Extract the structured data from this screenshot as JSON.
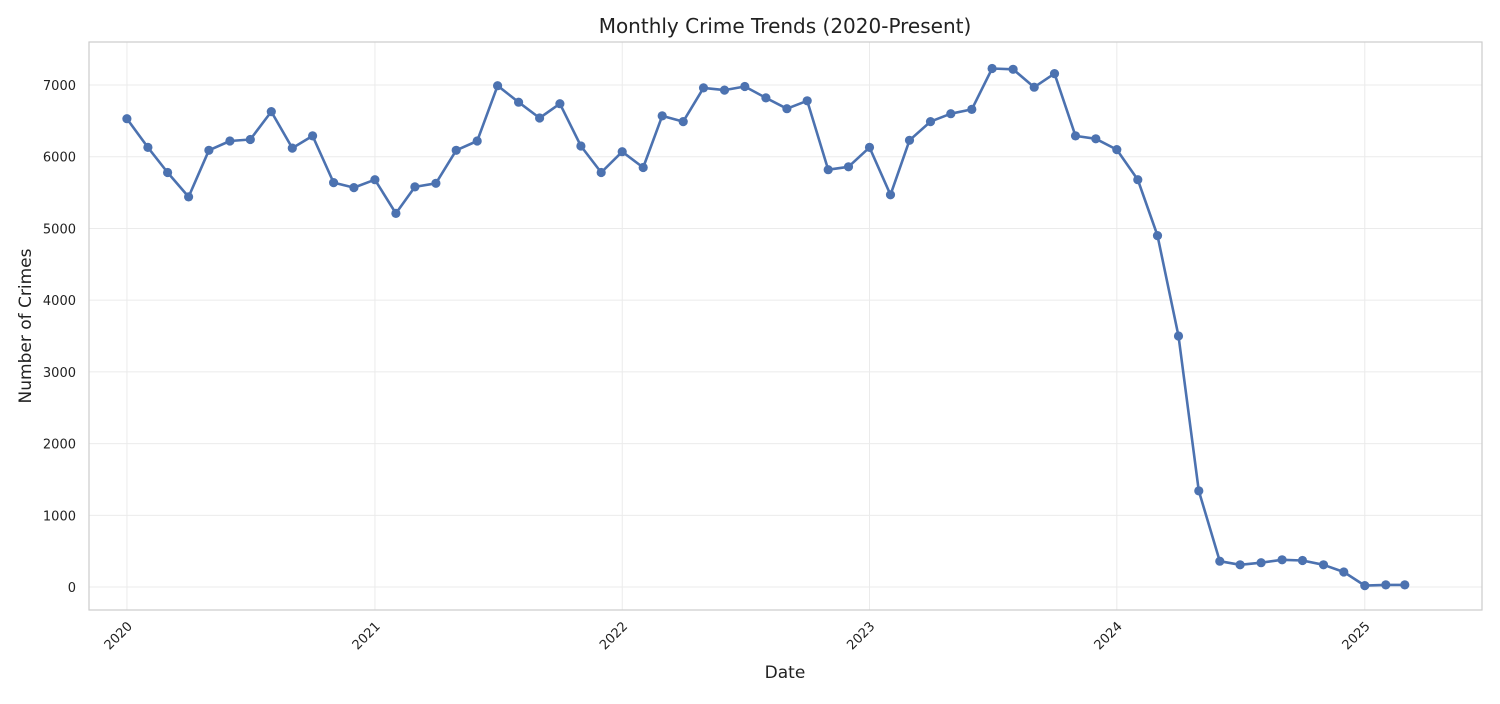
{
  "chart_data": {
    "type": "line",
    "title": "Monthly Crime Trends (2020-Present)",
    "xlabel": "Date",
    "ylabel": "Number of Crimes",
    "xlim": [
      "2019-11-06",
      "2025-06-23"
    ],
    "ylim": [
      -320,
      7600
    ],
    "x_ticks": [
      "2020",
      "2021",
      "2022",
      "2023",
      "2024",
      "2025"
    ],
    "y_ticks": [
      0,
      1000,
      2000,
      3000,
      4000,
      5000,
      6000,
      7000
    ],
    "grid": true,
    "legend": "none",
    "series_color": "#4c72b0",
    "series": [
      {
        "x": [
          "2020-01",
          "2020-02",
          "2020-03",
          "2020-04",
          "2020-05",
          "2020-06",
          "2020-07",
          "2020-08",
          "2020-09",
          "2020-10",
          "2020-11",
          "2020-12",
          "2021-01",
          "2021-02",
          "2021-03",
          "2021-04",
          "2021-05",
          "2021-06",
          "2021-07",
          "2021-08",
          "2021-09",
          "2021-10",
          "2021-11",
          "2021-12",
          "2022-01",
          "2022-02",
          "2022-03",
          "2022-04",
          "2022-05",
          "2022-06",
          "2022-07",
          "2022-08",
          "2022-09",
          "2022-10",
          "2022-11",
          "2022-12",
          "2023-01",
          "2023-02",
          "2023-03",
          "2023-04",
          "2023-05",
          "2023-06",
          "2023-07",
          "2023-08",
          "2023-09",
          "2023-10",
          "2023-11",
          "2023-12",
          "2024-01",
          "2024-02",
          "2024-03",
          "2024-04",
          "2024-05",
          "2024-06",
          "2024-07",
          "2024-08",
          "2024-09",
          "2024-10",
          "2024-11",
          "2024-12",
          "2025-01",
          "2025-02",
          "2025-03"
        ],
        "values": [
          6530,
          6130,
          5780,
          5440,
          6090,
          6220,
          6240,
          6630,
          6120,
          6290,
          5640,
          5570,
          5680,
          5210,
          5580,
          5630,
          6090,
          6220,
          6990,
          6760,
          6540,
          6740,
          6150,
          5780,
          6070,
          5850,
          6570,
          6490,
          6960,
          6930,
          6980,
          6820,
          6670,
          6780,
          5820,
          5860,
          6130,
          5470,
          6230,
          6490,
          6600,
          6660,
          7230,
          7220,
          6970,
          7160,
          6290,
          6250,
          6100,
          5680,
          4900,
          3500,
          1340,
          360,
          310,
          340,
          380,
          370,
          310,
          210,
          20,
          30,
          30
        ]
      }
    ]
  }
}
